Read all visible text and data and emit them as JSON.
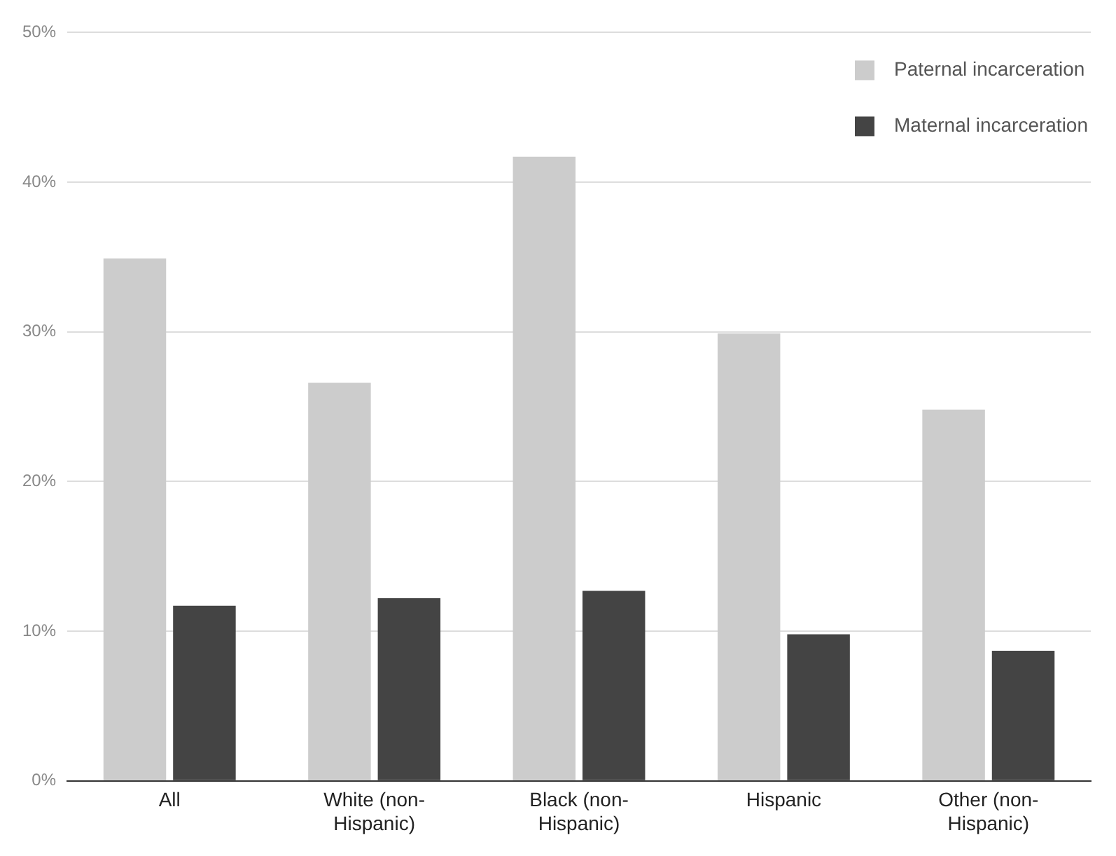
{
  "chart_data": {
    "type": "bar",
    "categories": [
      "All",
      "White (non-Hispanic)",
      "Black (non-Hispanic)",
      "Hispanic",
      "Other (non-Hispanic)"
    ],
    "series": [
      {
        "name": "Paternal incarceration",
        "color": "#cccccc",
        "values": [
          34.9,
          26.6,
          41.7,
          29.9,
          24.8
        ]
      },
      {
        "name": "Maternal incarceration",
        "color": "#444444",
        "values": [
          11.7,
          12.2,
          12.7,
          9.8,
          8.7
        ]
      }
    ],
    "ylim": [
      0,
      50
    ],
    "yticks": [
      {
        "value": 0,
        "label": "0%"
      },
      {
        "value": 10,
        "label": "10%"
      },
      {
        "value": 20,
        "label": "20%"
      },
      {
        "value": 30,
        "label": "30%"
      },
      {
        "value": 40,
        "label": "40%"
      },
      {
        "value": 50,
        "label": "50%"
      }
    ],
    "grid": "y",
    "legend": "top right"
  }
}
